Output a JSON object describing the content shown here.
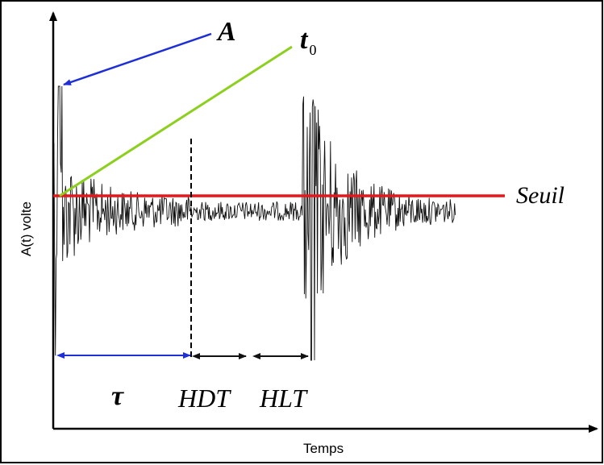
{
  "labels": {
    "x_axis": "Temps",
    "y_axis": "A(t) volte",
    "amplitude": "A",
    "t0_base": "t",
    "t0_sub": "0",
    "threshold": "Seuil",
    "tau": "τ",
    "hdt": "HDT",
    "hlt": "HLT"
  },
  "colors": {
    "amplitude_arrow": "#1f2fd6",
    "t0_line": "#8ccf1e",
    "threshold_line": "#e8151b",
    "tau_arrow": "#1f2fd6",
    "signal": "#111111"
  }
}
